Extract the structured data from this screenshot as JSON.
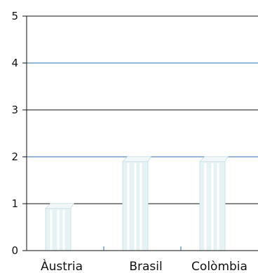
{
  "chart_data": {
    "type": "bar",
    "categories": [
      "Àustria",
      "Brasil",
      "Colòmbia"
    ],
    "values": [
      0.9,
      1.9,
      1.9
    ],
    "ylim": [
      0,
      5
    ],
    "yticks": [
      0,
      1,
      2,
      3,
      4,
      5
    ],
    "grid": true,
    "grid_colors": [
      "#111111",
      "#111111",
      "#2e6fb0",
      "#111111",
      "#2e6fb0",
      "#111111"
    ],
    "bar_colors": {
      "face": "#e7f2f4",
      "edge": "#cfe3e7",
      "highlight": "#ffffff"
    },
    "axis_color": "#111111",
    "tick_color": "#2e6fb0"
  }
}
